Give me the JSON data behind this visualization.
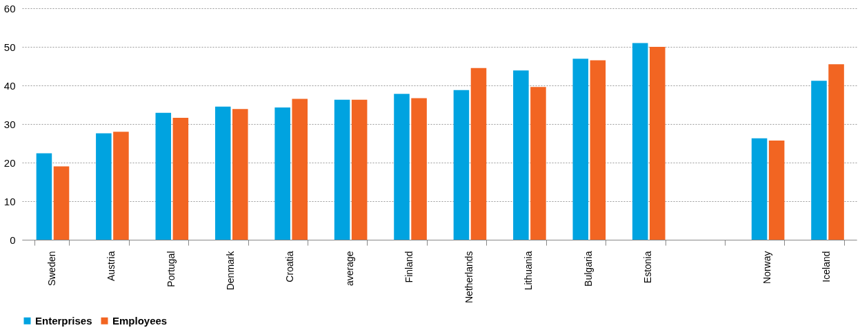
{
  "chart_data": {
    "type": "bar",
    "categories": [
      "Sweden",
      "Austria",
      "Portugal",
      "Denmark",
      "Croatia",
      "average",
      "Finland",
      "Netherlands",
      "Lithuania",
      "Bulgaria",
      "Estonia",
      null,
      "Norway",
      "Iceland"
    ],
    "series": [
      {
        "name": "Enterprises",
        "color": "#00a3e0",
        "values": [
          22.4,
          27.6,
          32.9,
          34.5,
          34.3,
          36.3,
          37.8,
          38.8,
          43.9,
          46.9,
          51.0,
          null,
          26.3,
          41.2
        ]
      },
      {
        "name": "Employees",
        "color": "#f26522",
        "values": [
          19.0,
          28.0,
          31.6,
          33.9,
          36.5,
          36.3,
          36.7,
          44.5,
          39.6,
          46.5,
          50.0,
          null,
          25.7,
          45.5
        ]
      }
    ],
    "ylim": [
      0,
      60
    ],
    "yticks": [
      0,
      10,
      20,
      30,
      40,
      50,
      60
    ],
    "grid": "y",
    "legend": "bottom"
  }
}
